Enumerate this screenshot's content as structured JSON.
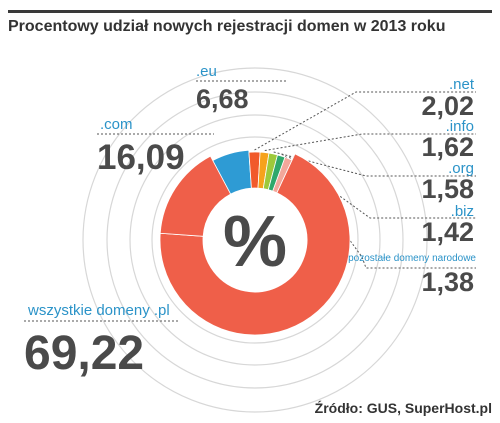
{
  "title": "Procentowy udział nowych rejestracji domen w 2013 roku",
  "source": "Źródło: GUS, SuperHost.pl",
  "center_symbol": "%",
  "colors": {
    "accent": "#2b93c8",
    "value_text": "#4a4a4a",
    "ring_guides": "#d7d7d7",
    "donut_center": "#ffffff"
  },
  "chart_data": {
    "type": "pie",
    "title": "Procentowy udział nowych rejestracji domen w 2013 roku",
    "unit": "%",
    "slices": [
      {
        "label": "wszystkie domeny .pl",
        "value": 69.22,
        "display": "69,22",
        "color": "#ef5f49"
      },
      {
        "label": ".com",
        "value": 16.09,
        "display": "16,09",
        "color": "#ef5f49"
      },
      {
        "label": ".eu",
        "value": 6.68,
        "display": "6,68",
        "color": "#2e9bd4"
      },
      {
        "label": ".net",
        "value": 2.02,
        "display": "2,02",
        "color": "#f15a2b"
      },
      {
        "label": ".info",
        "value": 1.62,
        "display": "1,62",
        "color": "#f6a21c"
      },
      {
        "label": ".org",
        "value": 1.58,
        "display": "1,58",
        "color": "#9dc93b"
      },
      {
        "label": ".biz",
        "value": 1.42,
        "display": "1,42",
        "color": "#2fa86b"
      },
      {
        "label": "pozostałe domeny narodowe",
        "value": 1.38,
        "display": "1,38",
        "color": "#f2a79b"
      }
    ]
  }
}
